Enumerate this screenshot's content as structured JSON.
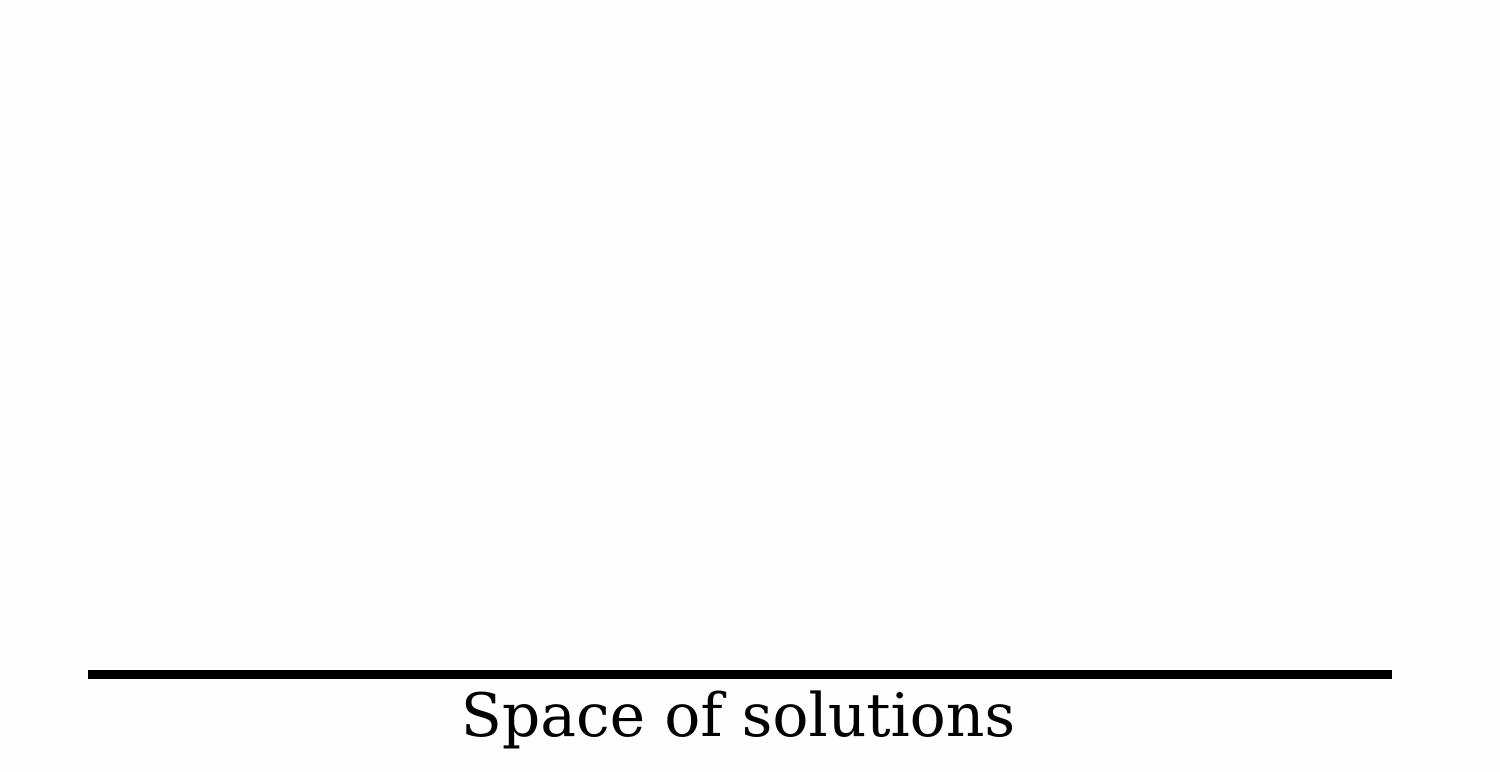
{
  "diagram": {
    "axis_caption": "Space of solutions"
  },
  "colors": {
    "background": "#fefefe",
    "ink": "#000000"
  }
}
